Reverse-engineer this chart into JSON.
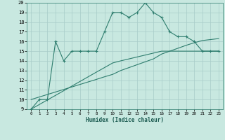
{
  "x": [
    0,
    1,
    2,
    3,
    4,
    5,
    6,
    7,
    8,
    9,
    10,
    11,
    12,
    13,
    14,
    15,
    16,
    17,
    18,
    19,
    20,
    21,
    22,
    23
  ],
  "y_main": [
    9,
    10,
    10,
    16,
    14,
    15,
    15,
    15,
    15,
    17,
    19,
    19,
    18.5,
    19,
    20,
    19,
    18.5,
    17,
    16.5,
    16.5,
    16,
    15,
    15,
    15
  ],
  "y_lower": [
    9,
    9.48,
    9.96,
    10.43,
    10.91,
    11.39,
    11.87,
    12.35,
    12.83,
    13.3,
    13.78,
    14.0,
    14.2,
    14.4,
    14.6,
    14.8,
    15.0,
    15.0,
    15.0,
    15.0,
    15.0,
    15.0,
    15.0,
    15.0
  ],
  "y_upper": [
    10,
    10.26,
    10.52,
    10.78,
    11.04,
    11.3,
    11.56,
    11.82,
    12.08,
    12.35,
    12.6,
    13.0,
    13.3,
    13.6,
    13.9,
    14.2,
    14.7,
    15.0,
    15.3,
    15.6,
    15.87,
    16.1,
    16.2,
    16.3
  ],
  "color_main": "#2e7d6e",
  "bg_color": "#c8e8e0",
  "grid_color": "#a8ccc8",
  "xlabel": "Humidex (Indice chaleur)",
  "ylim": [
    9,
    20
  ],
  "xlim": [
    -0.5,
    23.5
  ],
  "yticks": [
    9,
    10,
    11,
    12,
    13,
    14,
    15,
    16,
    17,
    18,
    19,
    20
  ],
  "xticks": [
    0,
    1,
    2,
    3,
    4,
    5,
    6,
    7,
    8,
    9,
    10,
    11,
    12,
    13,
    14,
    15,
    16,
    17,
    18,
    19,
    20,
    21,
    22,
    23
  ]
}
